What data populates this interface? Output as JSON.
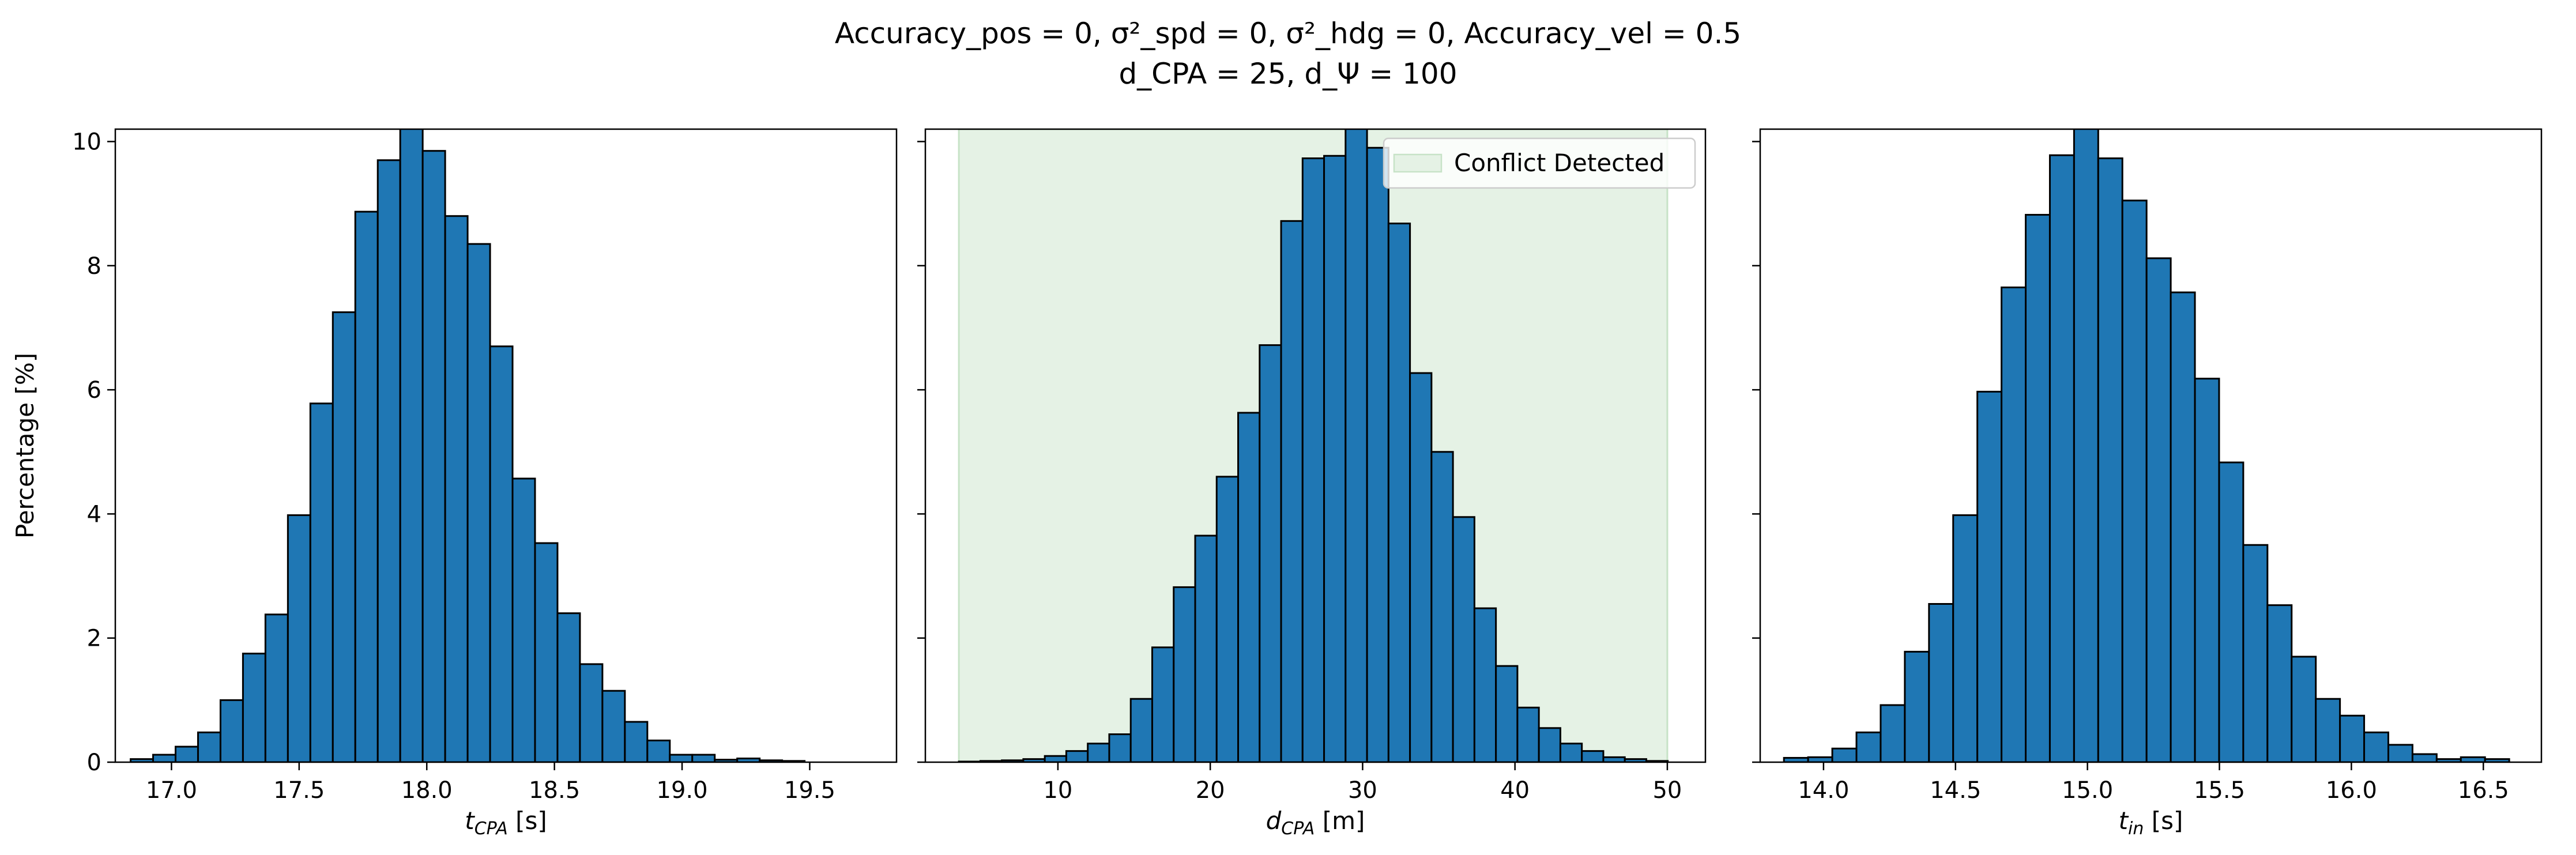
{
  "figure": {
    "title_line1": "Accuracy_pos = 0, σ²_spd = 0, σ²_hdg = 0, Accuracy_vel = 0.5",
    "title_line2": "d_CPA = 25, d_Ψ = 100"
  },
  "colors": {
    "bar_fill": "#1f77b4",
    "bar_edge": "#000000",
    "conflict_fill": "#e5f2e5",
    "conflict_edge": "#c7e3c7"
  },
  "chart_data": [
    {
      "type": "bar",
      "title": "",
      "xlabel": "t_CPA [s]",
      "ylabel": "Percentage [%]",
      "xlim": [
        16.78,
        19.84
      ],
      "ylim": [
        0,
        10.2
      ],
      "xticks": [
        17.0,
        17.5,
        18.0,
        18.5,
        19.0,
        19.5
      ],
      "yticks": [
        0,
        2,
        4,
        6,
        8,
        10
      ],
      "bin_start": 16.84,
      "bin_width": 0.088,
      "values": [
        0.05,
        0.12,
        0.25,
        0.48,
        1.0,
        1.75,
        2.38,
        3.98,
        5.78,
        7.25,
        8.87,
        9.7,
        10.3,
        9.85,
        8.8,
        8.35,
        6.7,
        4.57,
        3.53,
        2.4,
        1.58,
        1.15,
        0.65,
        0.35,
        0.12,
        0.12,
        0.04,
        0.06,
        0.03,
        0.02
      ],
      "shaded_region": null,
      "legend": null
    },
    {
      "type": "bar",
      "title": "",
      "xlabel": "d_CPA [m]",
      "ylabel": "",
      "xlim": [
        1.3,
        52.5
      ],
      "ylim": [
        0,
        10.2
      ],
      "xticks": [
        10,
        20,
        30,
        40,
        50
      ],
      "yticks": [
        0,
        2,
        4,
        6,
        8,
        10
      ],
      "bin_start": 3.5,
      "bin_width": 1.41,
      "values": [
        0.01,
        0.02,
        0.03,
        0.05,
        0.1,
        0.18,
        0.3,
        0.45,
        1.02,
        1.85,
        2.82,
        3.65,
        4.6,
        5.63,
        6.72,
        8.72,
        9.73,
        9.77,
        10.3,
        9.9,
        8.68,
        6.27,
        5.0,
        3.95,
        2.48,
        1.55,
        0.88,
        0.55,
        0.3,
        0.18,
        0.08,
        0.05,
        0.02
      ],
      "shaded_region": [
        3.5,
        50.0
      ],
      "legend": {
        "label": "Conflict Detected",
        "placement": "upper right"
      }
    },
    {
      "type": "bar",
      "title": "",
      "xlabel": "t_in [s]",
      "ylabel": "",
      "xlim": [
        13.76,
        16.72
      ],
      "ylim": [
        0,
        10.2
      ],
      "xticks": [
        14.0,
        14.5,
        15.0,
        15.5,
        16.0,
        16.5
      ],
      "yticks": [
        0,
        2,
        4,
        6,
        8,
        10
      ],
      "bin_start": 13.85,
      "bin_width": 0.0916,
      "values": [
        0.07,
        0.08,
        0.22,
        0.48,
        0.92,
        1.78,
        2.55,
        3.98,
        5.97,
        7.65,
        8.82,
        9.78,
        10.3,
        9.73,
        9.05,
        8.12,
        7.57,
        6.18,
        4.83,
        3.5,
        2.53,
        1.7,
        1.02,
        0.75,
        0.48,
        0.28,
        0.13,
        0.05,
        0.08,
        0.05
      ]
    }
  ]
}
